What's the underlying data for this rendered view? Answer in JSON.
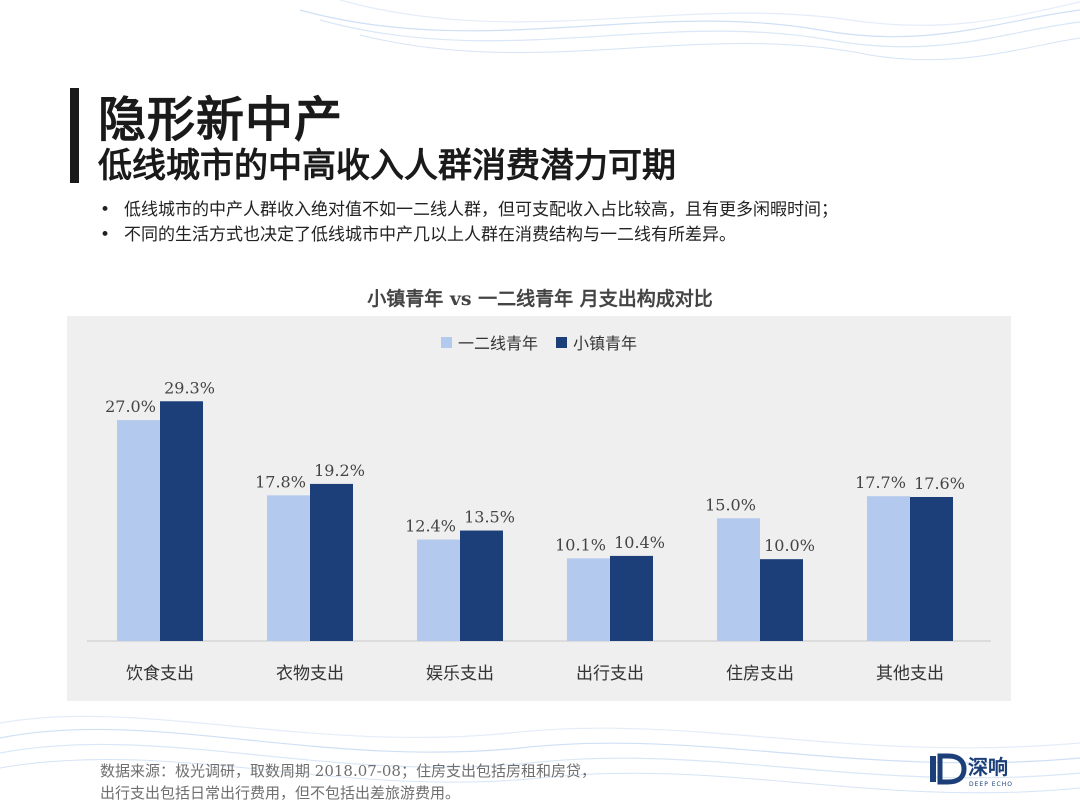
{
  "header": {
    "title": "隐形新中产",
    "subtitle": "低线城市的中高收入人群消费潜力可期"
  },
  "bullets": [
    "低线城市的中产人群收入绝对值不如一二线人群，但可支配收入占比较高，且有更多闲暇时间；",
    "不同的生活方式也决定了低线城市中产几以上人群在消费结构与一二线有所差异。"
  ],
  "bullet_symbol": "•",
  "chart_data": {
    "type": "bar",
    "title": "小镇青年 vs 一二线青年 月支出构成对比",
    "categories": [
      "饮食支出",
      "衣物支出",
      "娱乐支出",
      "出行支出",
      "住房支出",
      "其他支出"
    ],
    "series": [
      {
        "name": "一二线青年",
        "values": [
          27.0,
          17.8,
          12.4,
          10.1,
          15.0,
          17.7
        ],
        "labels": [
          "27.0%",
          "17.8%",
          "12.4%",
          "10.1%",
          "15.0%",
          "17.7%"
        ],
        "color": "#b3c9ee"
      },
      {
        "name": "小镇青年",
        "values": [
          29.3,
          19.2,
          13.5,
          10.4,
          10.0,
          17.6
        ],
        "labels": [
          "29.3%",
          "19.2%",
          "13.5%",
          "10.4%",
          "10.0%",
          "17.6%"
        ],
        "color": "#1c3f7a"
      }
    ],
    "ylim": [
      0,
      33
    ],
    "legend_position": "top-center",
    "grid": false
  },
  "source": {
    "line1": "数据来源：极光调研，取数周期 2018.07-08；住房支出包括房租和房贷，",
    "line2": "出行支出包括日常出行费用，但不包括出差旅游费用。"
  },
  "logo": {
    "text": "深响",
    "subtext": "DEEP ECHO",
    "color": "#1c3f7a"
  }
}
